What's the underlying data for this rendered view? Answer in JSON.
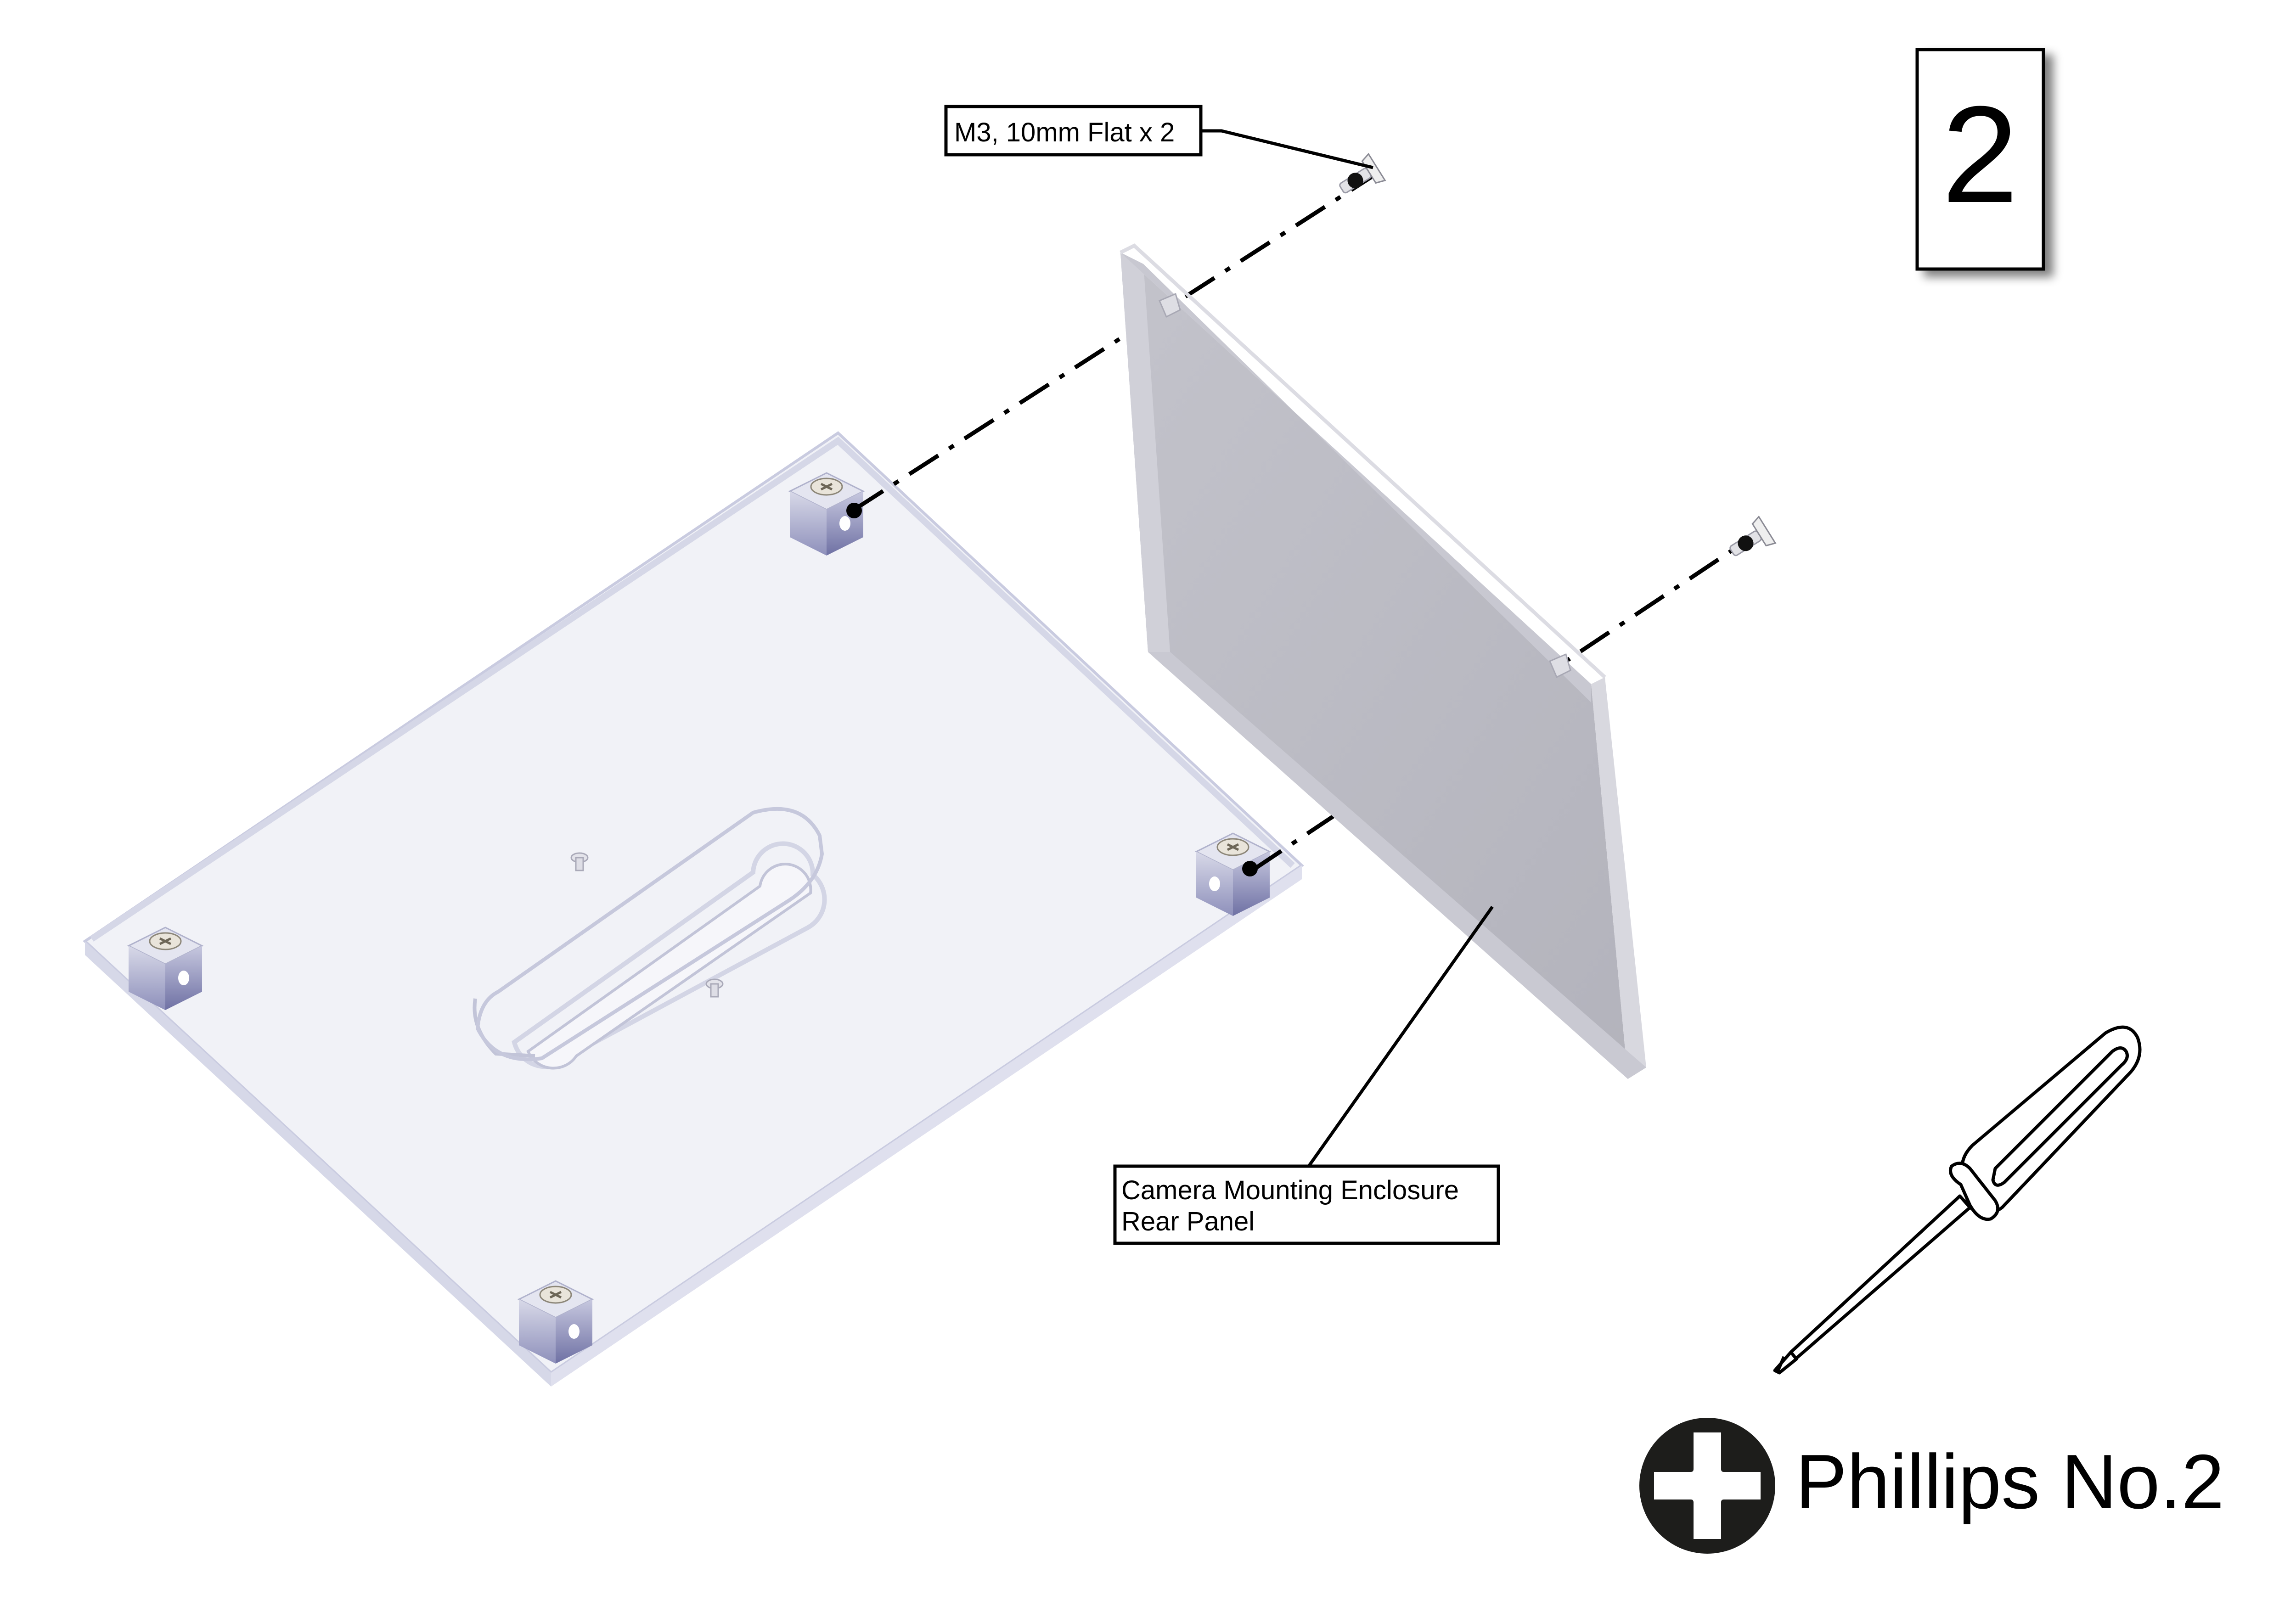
{
  "step": {
    "number": "2"
  },
  "callouts": {
    "screws": "M3, 10mm Flat x 2",
    "panel_line1": "Camera Mounting Enclosure",
    "panel_line2": "Rear Panel"
  },
  "tool": {
    "name": "Phillips No.2",
    "icon": "phillips-head-icon",
    "illustration": "screwdriver-icon"
  },
  "colors": {
    "ink": "#000000",
    "base_plate": "#eef0f6",
    "base_plate_edge": "#c9cbe0",
    "rear_panel": "#b9b9c1",
    "rear_panel_edge": "#d3d3da",
    "standoff_top": "#e2e3ee",
    "standoff_side": "#b8bad3"
  }
}
